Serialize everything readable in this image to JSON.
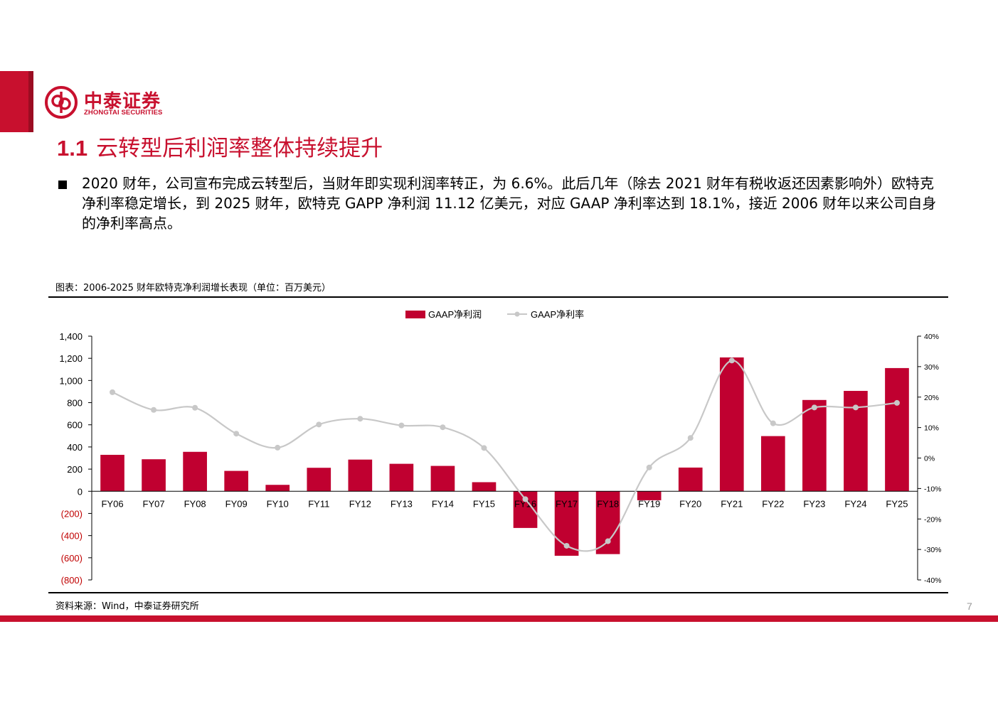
{
  "brand": {
    "name_cn": "中泰证券",
    "name_en": "ZHONGTAI SECURITIES",
    "color": "#c8102e"
  },
  "section": {
    "number": "1.1",
    "title": "云转型后利润率整体持续提升"
  },
  "body_text": "2020 财年，公司宣布完成云转型后，当财年即实现利润率转正，为 6.6%。此后几年（除去 2021 财年有税收返还因素影响外）欧特克净利率稳定增长，到 2025 财年，欧特克 GAPP 净利润 11.12 亿美元，对应 GAAP 净利率达到 18.1%，接近 2006 财年以来公司自身的净利率高点。",
  "figure_title": "图表：2006-2025 财年欧特克净利润增长表现（单位：百万美元）",
  "source": "资料来源：Wind，中泰证券研究所",
  "page_number": "7",
  "chart_data": {
    "type": "bar",
    "categories": [
      "FY06",
      "FY07",
      "FY08",
      "FY09",
      "FY10",
      "FY11",
      "FY12",
      "FY13",
      "FY14",
      "FY15",
      "FY16",
      "FY17",
      "FY18",
      "FY19",
      "FY20",
      "FY21",
      "FY22",
      "FY23",
      "FY24",
      "FY25"
    ],
    "series": [
      {
        "name": "GAAP净利润",
        "type": "bar",
        "axis": "left",
        "color": "#c00030",
        "values": [
          329,
          289,
          356,
          184,
          58,
          212,
          286,
          248,
          229,
          82,
          -331,
          -582,
          -567,
          -81,
          214,
          1208,
          498,
          824,
          906,
          1112
        ]
      },
      {
        "name": "GAAP净利率",
        "type": "line",
        "axis": "right",
        "color": "#c8c8c8",
        "values": [
          21.6,
          15.8,
          16.5,
          8.0,
          3.4,
          11.0,
          12.9,
          10.7,
          10.1,
          3.3,
          -13.5,
          -28.8,
          -27.3,
          -3.1,
          6.6,
          32.0,
          11.4,
          16.6,
          16.6,
          18.1
        ]
      }
    ],
    "left_axis": {
      "ylim": [
        -800,
        1400
      ],
      "ticks": [
        1400,
        1200,
        1000,
        800,
        600,
        400,
        200,
        0,
        -200,
        -400,
        -600,
        -800
      ],
      "tick_labels": [
        "1,400",
        "1,200",
        "1,000",
        "800",
        "600",
        "400",
        "200",
        "0",
        "(200)",
        "(400)",
        "(600)",
        "(800)"
      ],
      "negative_label_color": "#c00000"
    },
    "right_axis": {
      "ylim": [
        -40,
        40
      ],
      "ticks": [
        40,
        30,
        20,
        10,
        0,
        -10,
        -20,
        -30,
        -40
      ],
      "tick_labels": [
        "40%",
        "30%",
        "20%",
        "10%",
        "0%",
        "-10%",
        "-20%",
        "-30%",
        "-40%"
      ]
    },
    "legend": [
      "GAAP净利润",
      "GAAP净利率"
    ],
    "legend_position": "top-center",
    "grid": false
  }
}
